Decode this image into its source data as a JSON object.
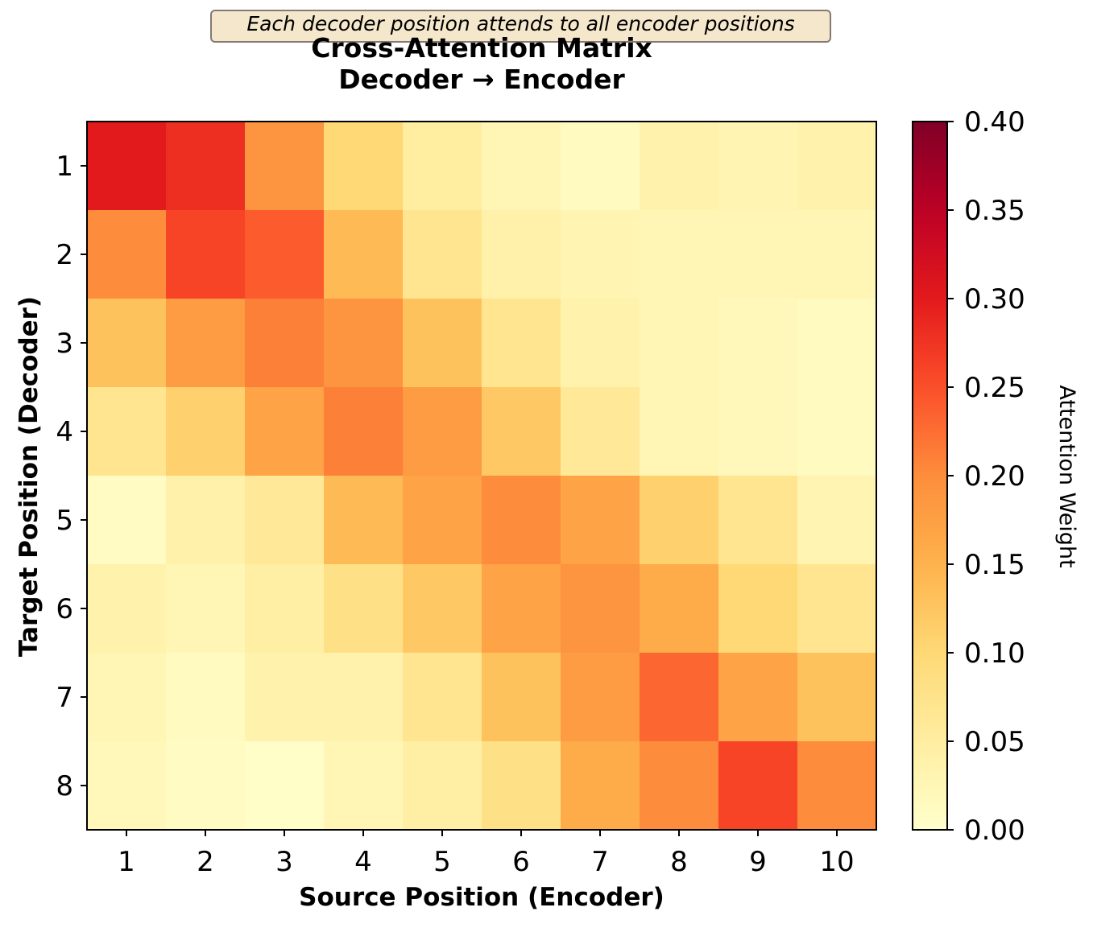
{
  "annotation": "Each decoder position attends to all encoder positions",
  "chart_data": {
    "type": "heatmap",
    "title_lines": [
      "Cross-Attention Matrix",
      "Decoder → Encoder"
    ],
    "xlabel": "Source Position (Encoder)",
    "ylabel": "Target Position (Decoder)",
    "x_categories": [
      "1",
      "2",
      "3",
      "4",
      "5",
      "6",
      "7",
      "8",
      "9",
      "10"
    ],
    "y_categories": [
      "1",
      "2",
      "3",
      "4",
      "5",
      "6",
      "7",
      "8"
    ],
    "values": [
      [
        0.3,
        0.28,
        0.19,
        0.1,
        0.05,
        0.025,
        0.015,
        0.035,
        0.03,
        0.035
      ],
      [
        0.2,
        0.26,
        0.24,
        0.14,
        0.07,
        0.04,
        0.03,
        0.025,
        0.025,
        0.025
      ],
      [
        0.13,
        0.18,
        0.21,
        0.19,
        0.13,
        0.07,
        0.035,
        0.025,
        0.02,
        0.015
      ],
      [
        0.07,
        0.11,
        0.17,
        0.21,
        0.18,
        0.12,
        0.06,
        0.025,
        0.02,
        0.015
      ],
      [
        0.01,
        0.04,
        0.06,
        0.14,
        0.17,
        0.2,
        0.17,
        0.11,
        0.07,
        0.03
      ],
      [
        0.035,
        0.025,
        0.045,
        0.08,
        0.12,
        0.17,
        0.19,
        0.16,
        0.1,
        0.07
      ],
      [
        0.025,
        0.015,
        0.035,
        0.035,
        0.07,
        0.13,
        0.18,
        0.23,
        0.17,
        0.13
      ],
      [
        0.02,
        0.01,
        0.005,
        0.025,
        0.045,
        0.08,
        0.16,
        0.2,
        0.26,
        0.2
      ]
    ],
    "colorbar": {
      "label": "Attention Weight",
      "vmin": 0.0,
      "vmax": 0.4,
      "ticks": [
        "0.00",
        "0.05",
        "0.10",
        "0.15",
        "0.20",
        "0.25",
        "0.30",
        "0.35",
        "0.40"
      ],
      "colormap": "YlOrRd",
      "colors": [
        "#ffffcc",
        "#ffeda0",
        "#fed976",
        "#feb24c",
        "#fd8d3c",
        "#fc4e2a",
        "#e31a1c",
        "#bd0026",
        "#800026"
      ]
    },
    "grid": false
  }
}
